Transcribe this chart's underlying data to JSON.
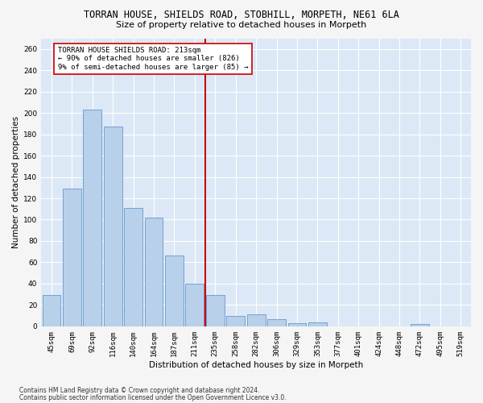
{
  "title": "TORRAN HOUSE, SHIELDS ROAD, STOBHILL, MORPETH, NE61 6LA",
  "subtitle": "Size of property relative to detached houses in Morpeth",
  "xlabel": "Distribution of detached houses by size in Morpeth",
  "ylabel": "Number of detached properties",
  "categories": [
    "45sqm",
    "69sqm",
    "92sqm",
    "116sqm",
    "140sqm",
    "164sqm",
    "187sqm",
    "211sqm",
    "235sqm",
    "258sqm",
    "282sqm",
    "306sqm",
    "329sqm",
    "353sqm",
    "377sqm",
    "401sqm",
    "424sqm",
    "448sqm",
    "472sqm",
    "495sqm",
    "519sqm"
  ],
  "values": [
    29,
    129,
    203,
    187,
    111,
    102,
    66,
    40,
    29,
    10,
    11,
    7,
    3,
    4,
    0,
    0,
    0,
    0,
    2,
    0,
    0
  ],
  "bar_color": "#b8d0ea",
  "bar_edge_color": "#6699cc",
  "vline_x": 7.5,
  "vline_color": "#cc0000",
  "ylim": [
    0,
    270
  ],
  "yticks": [
    0,
    20,
    40,
    60,
    80,
    100,
    120,
    140,
    160,
    180,
    200,
    220,
    240,
    260
  ],
  "annotation_text": "TORRAN HOUSE SHIELDS ROAD: 213sqm\n← 90% of detached houses are smaller (826)\n9% of semi-detached houses are larger (85) →",
  "annotation_box_color": "#ffffff",
  "annotation_box_edge": "#cc0000",
  "footnote1": "Contains HM Land Registry data © Crown copyright and database right 2024.",
  "footnote2": "Contains public sector information licensed under the Open Government Licence v3.0.",
  "plot_bg_color": "#dce8f5",
  "fig_bg_color": "#f5f5f5",
  "title_fontsize": 8.5,
  "subtitle_fontsize": 8,
  "tick_fontsize": 6.5,
  "ylabel_fontsize": 7.5,
  "xlabel_fontsize": 7.5,
  "annot_fontsize": 6.5
}
